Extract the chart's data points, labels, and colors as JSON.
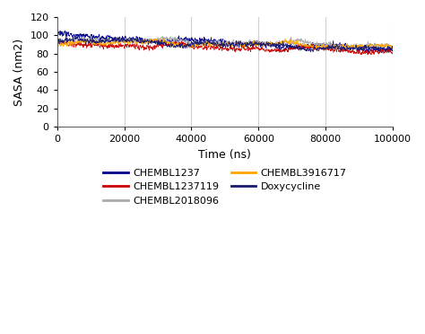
{
  "title": "",
  "xlabel": "Time (ns)",
  "ylabel": "SASA (nm2)",
  "xlim": [
    0,
    100000
  ],
  "ylim": [
    0,
    120
  ],
  "yticks": [
    0,
    20,
    40,
    60,
    80,
    100,
    120
  ],
  "xticks": [
    0,
    20000,
    40000,
    60000,
    80000,
    100000
  ],
  "grid_color": "#d0d0d0",
  "background_color": "#ffffff",
  "series": [
    {
      "label": "CHEMBL1237",
      "color": "#00008B",
      "mean_start": 100,
      "mean_end": 84,
      "noise": 2.5,
      "seed": 1
    },
    {
      "label": "CHEMBL1237119",
      "color": "#CC0000",
      "mean_start": 91,
      "mean_end": 82,
      "noise": 2.2,
      "seed": 2
    },
    {
      "label": "CHEMBL2018096",
      "color": "#aaaaaa",
      "mean_start": 96,
      "mean_end": 89,
      "noise": 2.2,
      "seed": 3
    },
    {
      "label": "CHEMBL3916717",
      "color": "#FFA500",
      "mean_start": 93,
      "mean_end": 88,
      "noise": 2.0,
      "seed": 4
    },
    {
      "label": "Doxycycline",
      "color": "#191970",
      "mean_start": 95,
      "mean_end": 85,
      "noise": 2.2,
      "seed": 5
    }
  ],
  "legend_cols": 2,
  "linewidth": 0.5,
  "n_points": 2000,
  "xlabel_fontsize": 9,
  "ylabel_fontsize": 9,
  "tick_fontsize": 8,
  "legend_fontsize": 8
}
